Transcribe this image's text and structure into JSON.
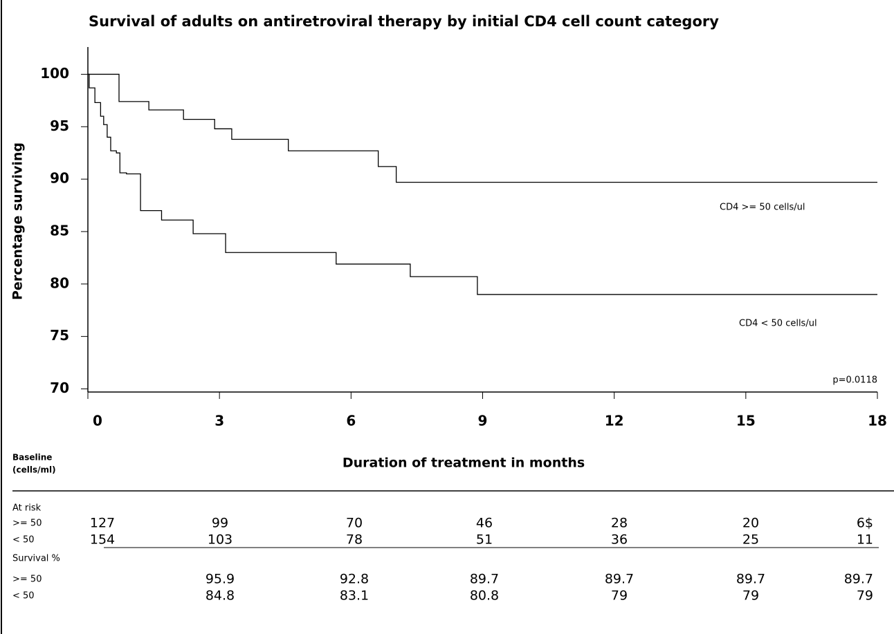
{
  "chart_data": {
    "type": "line",
    "title": "Survival of adults on antiretroviral therapy by initial CD4 cell count category",
    "ylabel": "Percentage surviving",
    "xlabel": "Duration of treatment in months",
    "xlim": [
      0,
      18
    ],
    "xticks": [
      0,
      3,
      6,
      9,
      12,
      15,
      18
    ],
    "ylim": [
      69.7,
      102.6
    ],
    "yticks": [
      70,
      75,
      80,
      85,
      90,
      95,
      100
    ],
    "series": [
      {
        "name": "CD4 >= 50 cells/ul",
        "color": "#000000",
        "x": [
          0,
          0.71,
          1.39,
          2.18,
          2.89,
          3.28,
          4.57,
          6.62,
          7.03,
          18
        ],
        "values": [
          100,
          97.4,
          96.6,
          95.7,
          94.8,
          93.8,
          92.7,
          91.2,
          89.7,
          89.7
        ]
      },
      {
        "name": "CD4 < 50 cells/ul",
        "color": "#000000",
        "x": [
          0,
          0.03,
          0.16,
          0.29,
          0.36,
          0.44,
          0.52,
          0.65,
          0.73,
          0.88,
          1.2,
          1.68,
          2.4,
          3.14,
          5.66,
          7.35,
          8.88,
          18
        ],
        "values": [
          100,
          98.7,
          97.3,
          96.0,
          95.2,
          94.0,
          92.7,
          92.5,
          90.6,
          90.5,
          87.0,
          86.1,
          84.8,
          83.0,
          81.9,
          80.7,
          79.0,
          79.0
        ]
      }
    ],
    "annotations": [
      "p=0.0118"
    ]
  },
  "table": {
    "baseline_label": [
      "Baseline",
      "(cells/ml)"
    ],
    "at_risk": {
      "label": "At risk",
      "rows": [
        {
          "label": ">= 50",
          "values": [
            127,
            99,
            70,
            46,
            28,
            20,
            "6$"
          ]
        },
        {
          "label": "< 50",
          "values": [
            154,
            103,
            78,
            51,
            36,
            25,
            11
          ]
        }
      ]
    },
    "survival": {
      "label": "Survival %",
      "rows": [
        {
          "label": ">= 50",
          "values": [
            95.9,
            92.8,
            89.7,
            89.7,
            89.7,
            89.7
          ]
        },
        {
          "label": "< 50",
          "values": [
            84.8,
            83.1,
            80.8,
            79,
            79,
            79
          ]
        }
      ]
    }
  }
}
